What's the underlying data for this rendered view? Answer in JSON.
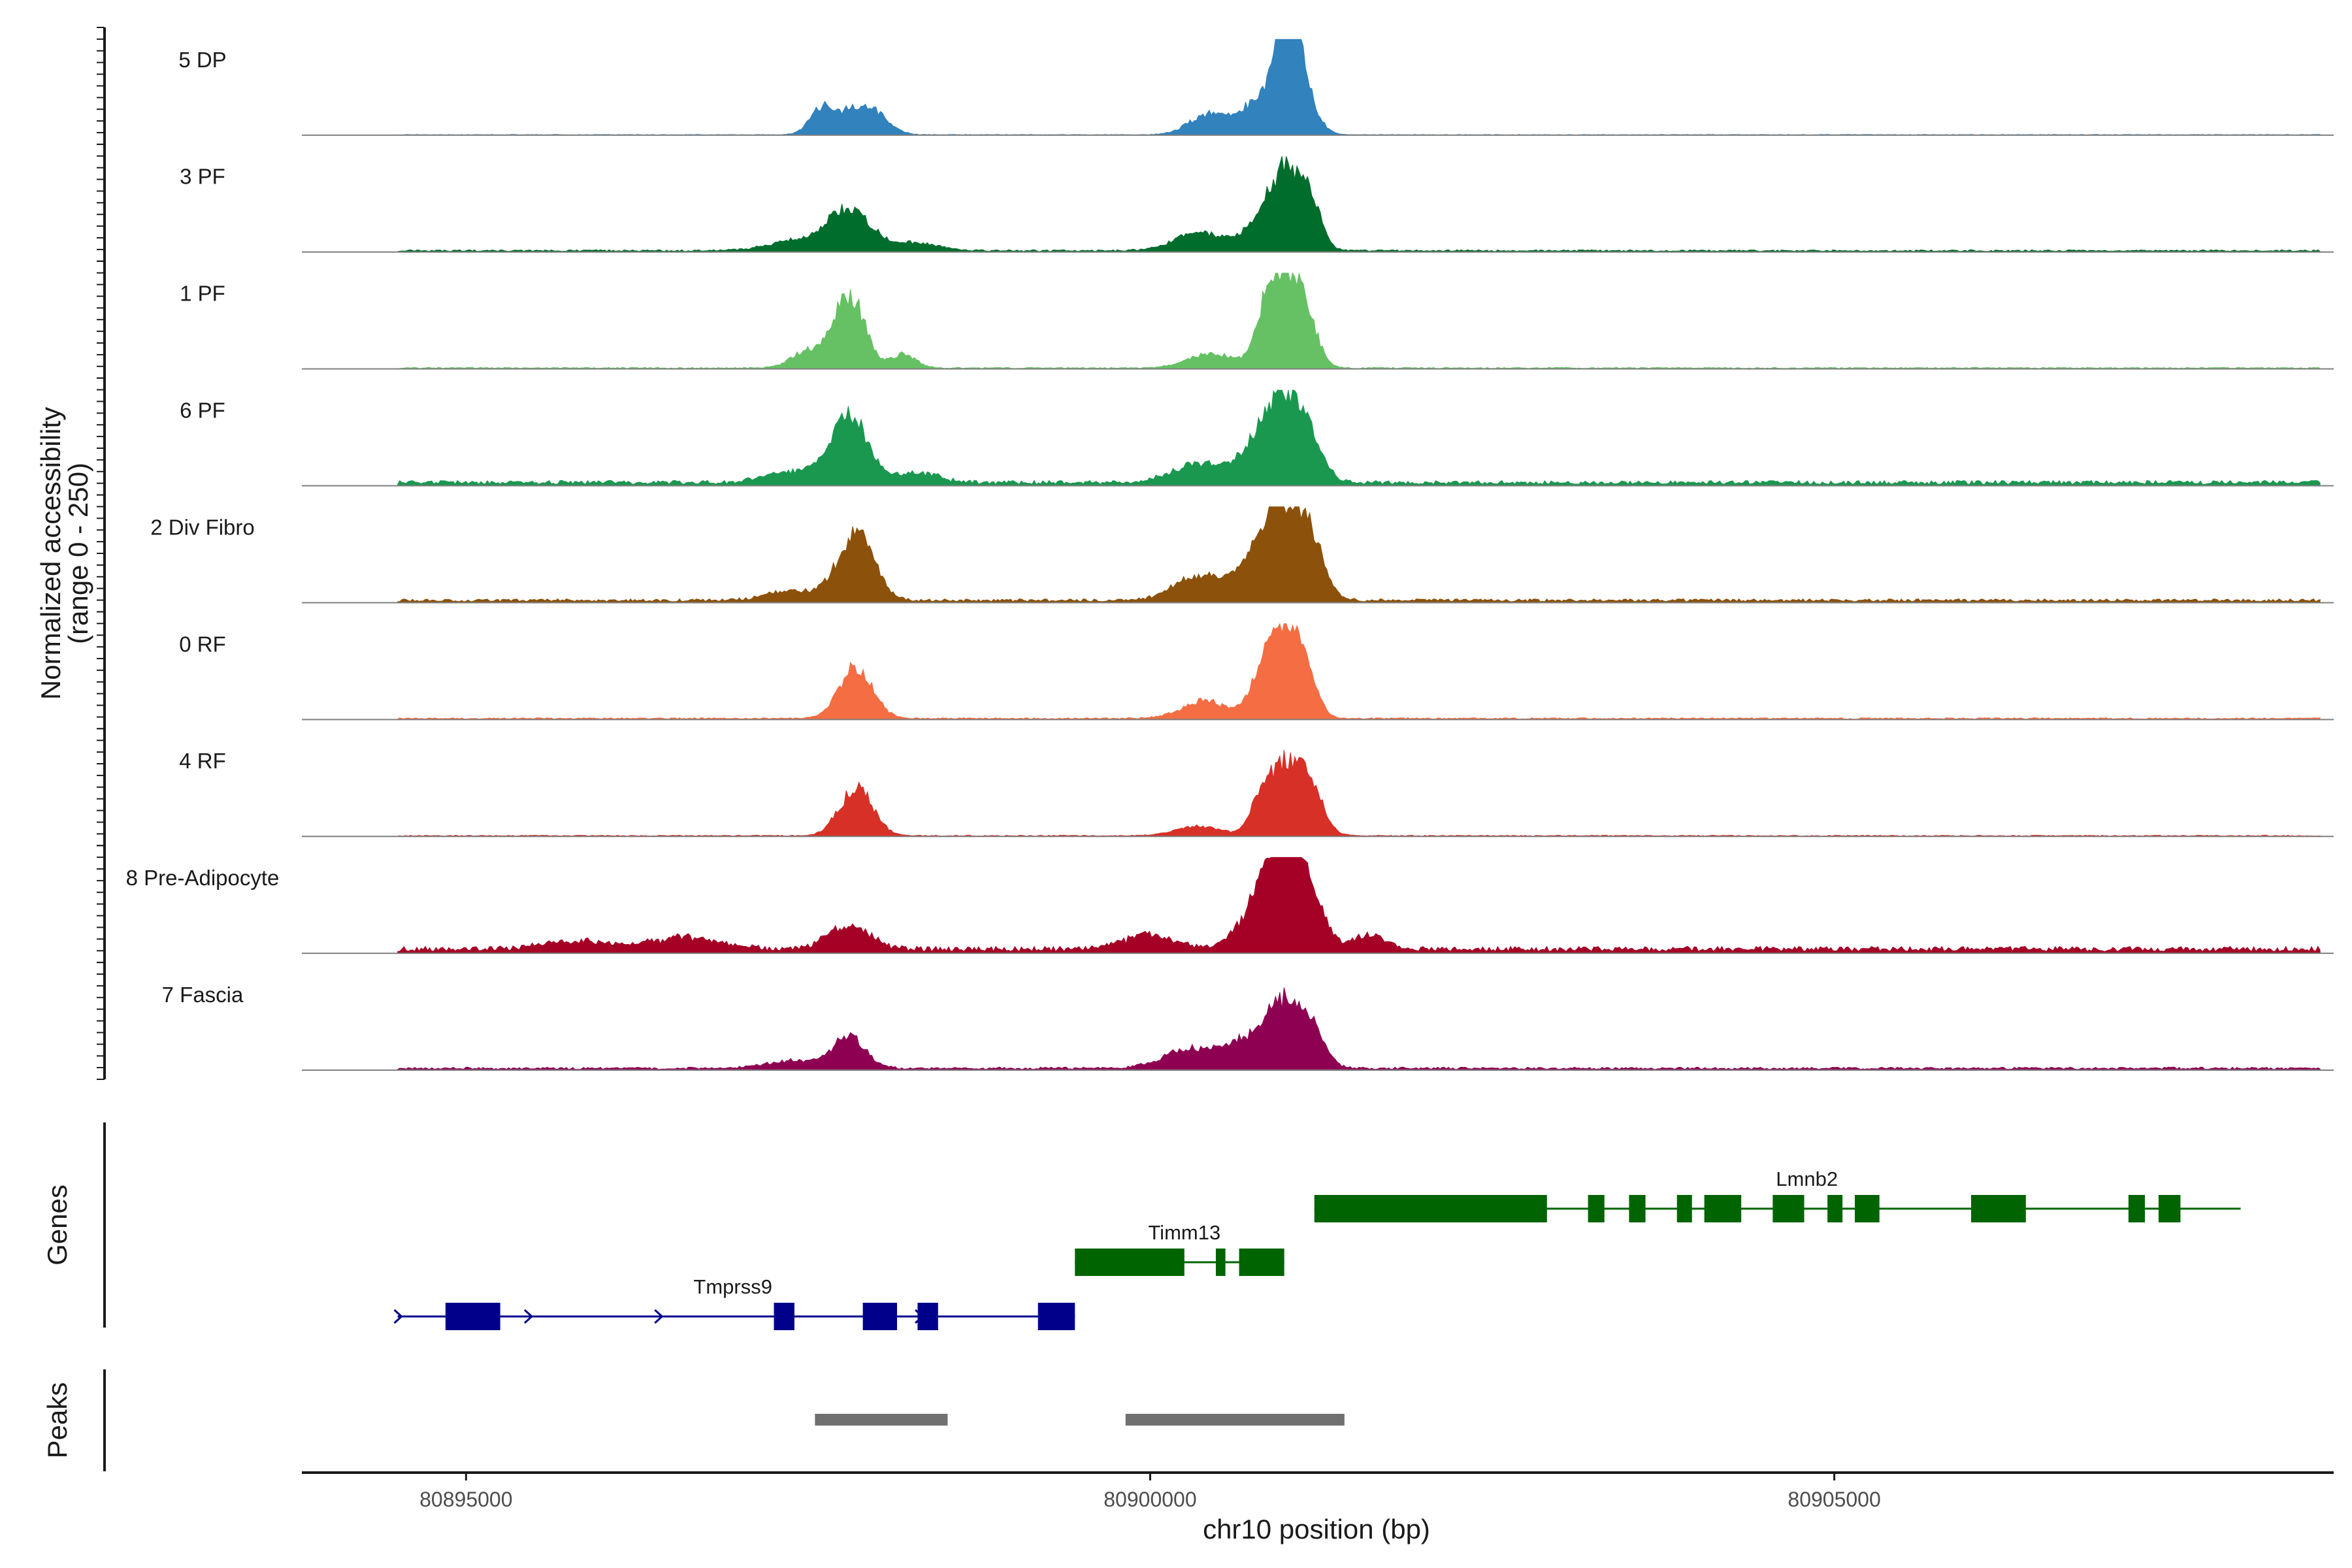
{
  "chart_data": {
    "type": "area",
    "title": "",
    "ylabel": "Normalized accessibility\n(range 0 - 250)",
    "xlabel": "chr10 position (bp)",
    "ylim": [
      0,
      250
    ],
    "xlim": [
      80893800,
      80908650
    ],
    "xticks": [
      80895000,
      80900000,
      80905000
    ],
    "tracks": [
      {
        "name": "5 DP",
        "color": "#3182BD",
        "baseline": 0.5,
        "peaks": [
          [
            80897600,
            0.25,
            90
          ],
          [
            80897820,
            0.22,
            120
          ],
          [
            80898000,
            0.18,
            110
          ],
          [
            80900420,
            0.2,
            140
          ],
          [
            80900850,
            0.4,
            170
          ],
          [
            80901050,
            0.75,
            110
          ],
          [
            80901000,
            1.0,
            55
          ]
        ]
      },
      {
        "name": "3 PF",
        "color": "#006D2C",
        "baseline": 1.5,
        "peaks": [
          [
            80897800,
            0.42,
            160
          ],
          [
            80897400,
            0.1,
            200
          ],
          [
            80898300,
            0.08,
            160
          ],
          [
            80900350,
            0.18,
            180
          ],
          [
            80900800,
            0.22,
            140
          ],
          [
            80901000,
            0.8,
            120
          ],
          [
            80901180,
            0.35,
            80
          ]
        ]
      },
      {
        "name": "1 PF",
        "color": "#66C164",
        "baseline": 1.0,
        "peaks": [
          [
            80897800,
            0.75,
            110
          ],
          [
            80897500,
            0.18,
            120
          ],
          [
            80898200,
            0.15,
            90
          ],
          [
            80900450,
            0.15,
            170
          ],
          [
            80900850,
            0.4,
            80
          ],
          [
            80901000,
            0.9,
            120
          ],
          [
            80901150,
            0.3,
            80
          ]
        ]
      },
      {
        "name": "6 PF",
        "color": "#1A9850",
        "baseline": 3.5,
        "peaks": [
          [
            80897800,
            0.72,
            130
          ],
          [
            80897400,
            0.12,
            200
          ],
          [
            80898300,
            0.1,
            160
          ],
          [
            80900400,
            0.2,
            220
          ],
          [
            80900800,
            0.32,
            130
          ],
          [
            80901000,
            0.85,
            130
          ],
          [
            80901200,
            0.25,
            90
          ]
        ]
      },
      {
        "name": "2 Div Fibro",
        "color": "#8C510A",
        "baseline": 2.5,
        "peaks": [
          [
            80897850,
            0.7,
            130
          ],
          [
            80897400,
            0.1,
            200
          ],
          [
            80900350,
            0.25,
            180
          ],
          [
            80900800,
            0.35,
            170
          ],
          [
            80901000,
            0.9,
            150
          ],
          [
            80901200,
            0.3,
            90
          ]
        ]
      },
      {
        "name": "0 RF",
        "color": "#F46D43",
        "baseline": 1.2,
        "peaks": [
          [
            80897850,
            0.55,
            120
          ],
          [
            80900400,
            0.18,
            170
          ],
          [
            80900850,
            0.4,
            110
          ],
          [
            80901000,
            0.8,
            120
          ],
          [
            80901150,
            0.25,
            80
          ]
        ]
      },
      {
        "name": "4 RF",
        "color": "#D73027",
        "baseline": 0.8,
        "peaks": [
          [
            80897850,
            0.5,
            120
          ],
          [
            80900350,
            0.1,
            160
          ],
          [
            80900800,
            0.2,
            70
          ],
          [
            80901000,
            0.8,
            140
          ],
          [
            80901200,
            0.25,
            80
          ]
        ]
      },
      {
        "name": "8 Pre-Adipocyte",
        "color": "#A50026",
        "baseline": 4.5,
        "peaks": [
          [
            80897800,
            0.25,
            150
          ],
          [
            80896600,
            0.12,
            250
          ],
          [
            80900000,
            0.15,
            180
          ],
          [
            80900800,
            0.45,
            140
          ],
          [
            80901000,
            1.0,
            130
          ],
          [
            80901200,
            0.3,
            100
          ],
          [
            80901600,
            0.15,
            120
          ],
          [
            80895800,
            0.08,
            250
          ]
        ]
      },
      {
        "name": "7 Fascia",
        "color": "#8E0152",
        "baseline": 2.0,
        "peaks": [
          [
            80897800,
            0.32,
            120
          ],
          [
            80897400,
            0.08,
            200
          ],
          [
            80900300,
            0.2,
            200
          ],
          [
            80900700,
            0.25,
            150
          ],
          [
            80901000,
            0.7,
            140
          ],
          [
            80901200,
            0.25,
            90
          ]
        ]
      }
    ],
    "genes_track_label": "Genes",
    "peaks_track_label": "Peaks",
    "genes": [
      {
        "name": "Tmprss9",
        "color": "#00008B",
        "strand": "+",
        "row": 3,
        "label_x": 80896950,
        "start": 80894500,
        "end": 80899450,
        "exons": [
          [
            80894850,
            80895250
          ],
          [
            80897250,
            80897400
          ],
          [
            80897900,
            80898150
          ],
          [
            80898300,
            80898450
          ],
          [
            80899180,
            80899450
          ]
        ]
      },
      {
        "name": "Timm13",
        "color": "#006400",
        "strand": "",
        "row": 2,
        "label_x": 80900250,
        "start": 80899450,
        "end": 80900980,
        "exons": [
          [
            80899450,
            80900250
          ],
          [
            80900480,
            80900550
          ],
          [
            80900650,
            80900980
          ]
        ]
      },
      {
        "name": "Lmnb2",
        "color": "#006400",
        "strand": "",
        "row": 1,
        "label_x": 80904800,
        "start": 80901200,
        "end": 80907970,
        "exons": [
          [
            80901200,
            80902900
          ],
          [
            80903200,
            80903320
          ],
          [
            80903500,
            80903620
          ],
          [
            80903850,
            80903960
          ],
          [
            80904050,
            80904320
          ],
          [
            80904550,
            80904780
          ],
          [
            80904950,
            80905060
          ],
          [
            80905150,
            80905330
          ],
          [
            80906000,
            80906400
          ],
          [
            80907150,
            80907270
          ],
          [
            80907370,
            80907530
          ]
        ]
      }
    ],
    "peak_regions": [
      [
        80897550,
        80898520
      ],
      [
        80899820,
        80901420
      ]
    ]
  }
}
